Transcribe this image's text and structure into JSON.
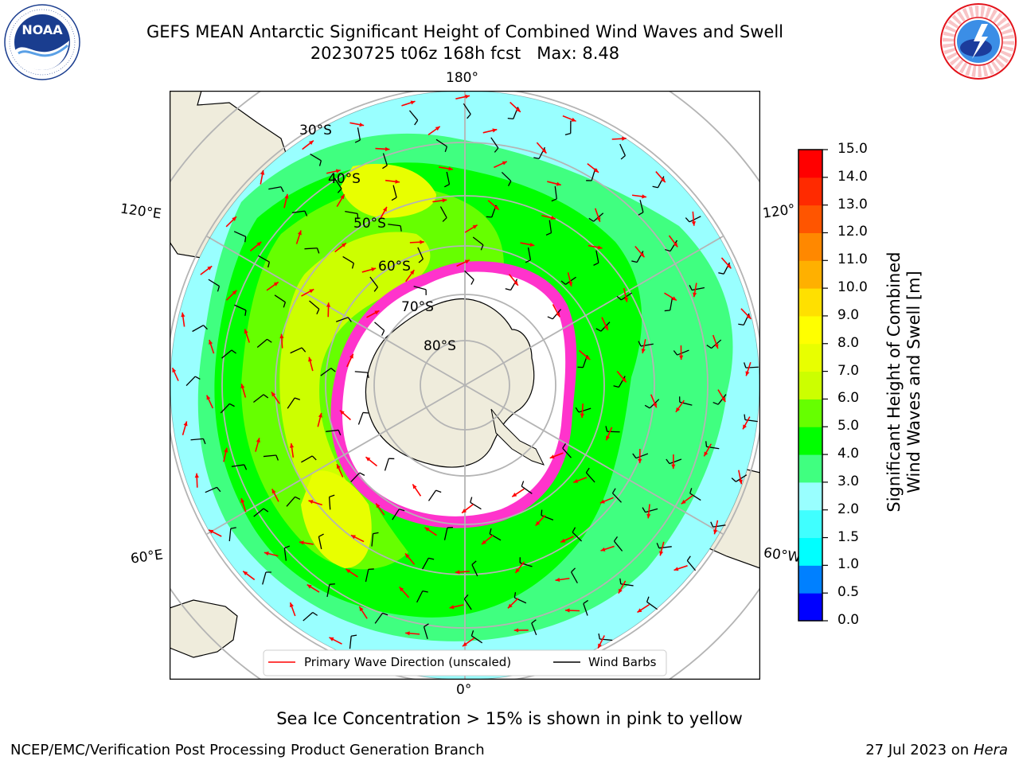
{
  "title": {
    "line1": "GEFS MEAN Antarctic Significant Height of Combined Wind Waves and Swell",
    "line2": "20230725 t06z 168h fcst   Max: 8.48"
  },
  "logos": {
    "left": "NOAA",
    "left_ring": "NATIONAL OCEANIC AND ATMOSPHERIC ADMINISTRATION · U.S. DEPARTMENT OF COMMERCE",
    "right_ring": "NATIONAL WEATHER SERVICE"
  },
  "map": {
    "longitude_labels": {
      "top": "180°",
      "bottom": "0°",
      "upper_left": "120°E",
      "lower_left": "60°E",
      "upper_right": "120°",
      "lower_right": "60°W"
    },
    "latitude_labels": [
      "30°S",
      "40°S",
      "50°S",
      "60°S",
      "70°S",
      "80°S"
    ],
    "colors": {
      "land": "#efecdc",
      "ice": "#ffffff",
      "ice_edge": "#ff33cc",
      "grid": "#b4b4b4"
    }
  },
  "legend": {
    "wave_label": "Primary Wave Direction (unscaled)",
    "wind_label": "Wind Barbs",
    "wave_color": "#ff0000",
    "wind_color": "#000000"
  },
  "colorbar": {
    "label_line1": "Significant Height of Combined",
    "label_line2": "Wind Waves and Swell [m]",
    "ticks": [
      "15.0",
      "14.0",
      "13.0",
      "12.0",
      "11.0",
      "10.0",
      "9.0",
      "8.0",
      "7.0",
      "6.0",
      "5.0",
      "4.0",
      "3.0",
      "2.0",
      "1.5",
      "1.0",
      "0.5",
      "0.0"
    ],
    "levels": [
      0,
      0.5,
      1,
      1.5,
      2,
      3,
      4,
      5,
      6,
      7,
      8,
      9,
      10,
      11,
      12,
      13,
      14,
      15
    ],
    "colors": [
      "#0000ff",
      "#0080ff",
      "#00ffff",
      "#40ffff",
      "#99ffff",
      "#40ff80",
      "#00ff00",
      "#66ff00",
      "#ccff00",
      "#e8ff00",
      "#ffff00",
      "#ffe000",
      "#ffb000",
      "#ff8800",
      "#ff5500",
      "#ff2a00",
      "#ff0000"
    ]
  },
  "footer": {
    "sea_ice_note": "Sea Ice Concentration > 15% is shown in pink to yellow",
    "credit": "NCEP/EMC/Verification Post Processing Product Generation Branch",
    "date": "27 Jul 2023 on ",
    "machine": "Hera"
  }
}
